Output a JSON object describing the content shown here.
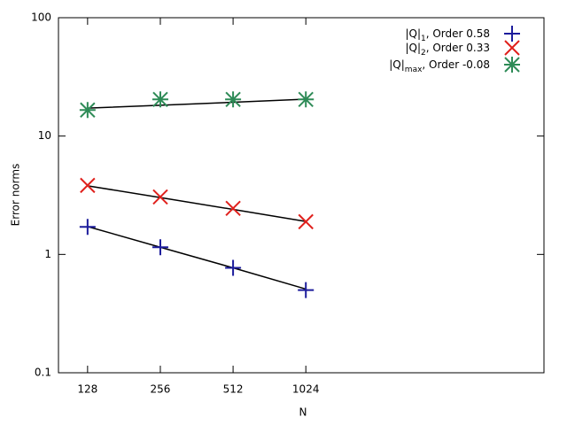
{
  "chart_data": {
    "type": "scatter",
    "x_label": "N",
    "y_label": "Error norms",
    "x": [
      128,
      256,
      512,
      1024
    ],
    "xlim": [
      97,
      9900
    ],
    "xticks": [
      128,
      256,
      512,
      1024
    ],
    "xlog": true,
    "ylim": [
      0.1,
      100
    ],
    "yticks": [
      0.1,
      1,
      10,
      100
    ],
    "ylog": true,
    "legend": "top-right",
    "series": [
      {
        "name": [
          "|Q|",
          "1",
          ", Order 0.58"
        ],
        "color": "#1c1c9c",
        "marker": "plus",
        "values": [
          1.71,
          1.15,
          0.77,
          0.5
        ],
        "fit_values": [
          1.72,
          1.15,
          0.77,
          0.51
        ]
      },
      {
        "name": [
          "|Q|",
          "2",
          ", Order 0.33"
        ],
        "color": "#e0201c",
        "marker": "cross",
        "values": [
          3.83,
          3.06,
          2.45,
          1.89
        ],
        "fit_values": [
          3.8,
          3.02,
          2.4,
          1.9
        ]
      },
      {
        "name": [
          "|Q|",
          "max",
          ", Order -0.08"
        ],
        "color": "#2e8b57",
        "marker": "star",
        "values": [
          16.6,
          20.4,
          20.4,
          20.4
        ],
        "fit_values": [
          17.2,
          18.2,
          19.3,
          20.5
        ]
      }
    ]
  }
}
